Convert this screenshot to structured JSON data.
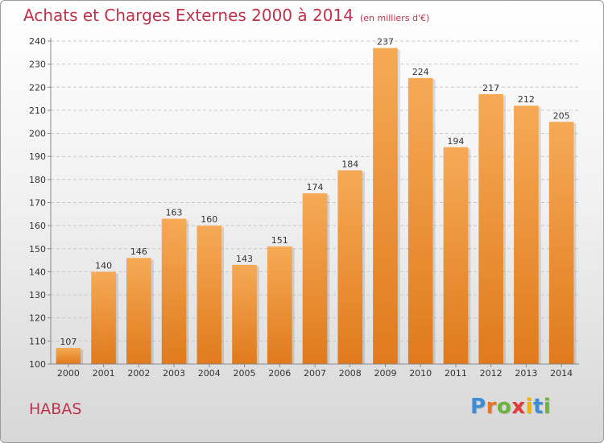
{
  "title": "Achats et Charges Externes 2000 à 2014",
  "subtitle": "(en milliers d'€)",
  "place": "HABAS",
  "logo": {
    "letters": [
      "P",
      "r",
      "o",
      "x",
      "i",
      "t",
      "i"
    ],
    "colors": [
      "#3b8ed6",
      "#e8742a",
      "#6db33f",
      "#e23b3b",
      "#f2b400",
      "#3b8ed6",
      "#6db33f"
    ]
  },
  "colors": {
    "bar_top": "#f6aa56",
    "bar_bottom": "#e07a1d",
    "accent": "#c0324b"
  },
  "chart_data": {
    "type": "bar",
    "categories": [
      "2000",
      "2001",
      "2002",
      "2003",
      "2004",
      "2005",
      "2006",
      "2007",
      "2008",
      "2009",
      "2010",
      "2011",
      "2012",
      "2013",
      "2014"
    ],
    "values": [
      107,
      140,
      146,
      163,
      160,
      143,
      151,
      174,
      184,
      237,
      224,
      194,
      217,
      212,
      205
    ],
    "ylim": [
      100,
      240
    ],
    "yticks": [
      100,
      110,
      120,
      130,
      140,
      150,
      160,
      170,
      180,
      190,
      200,
      210,
      220,
      230,
      240
    ],
    "grid": true
  }
}
